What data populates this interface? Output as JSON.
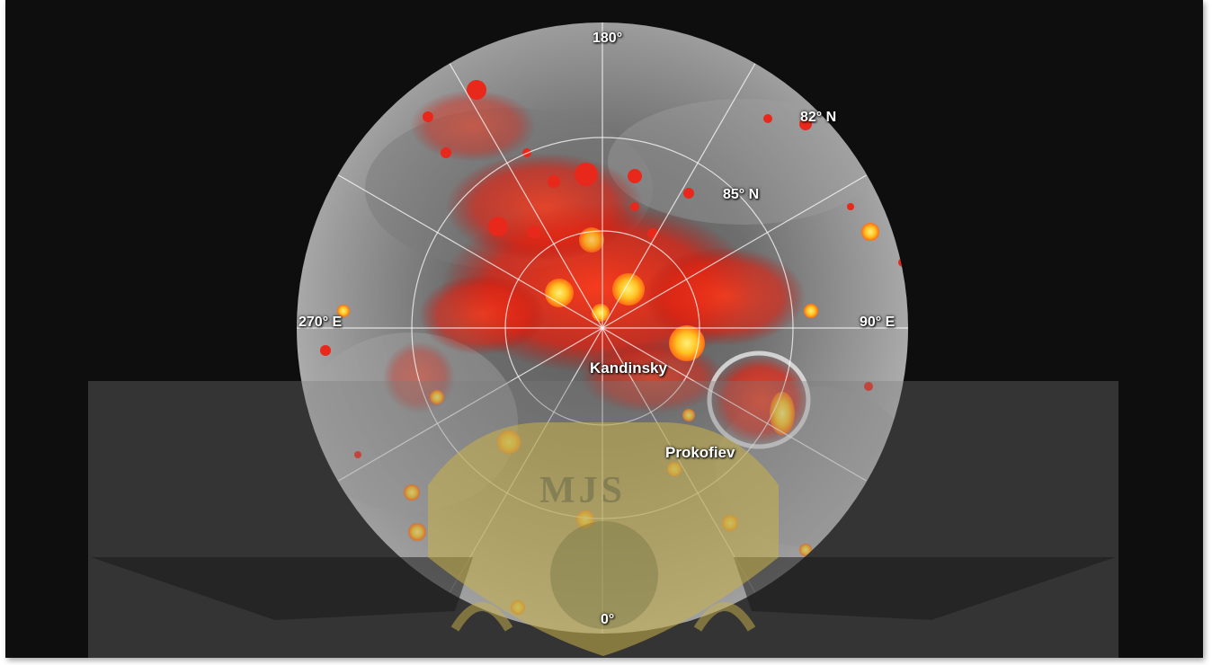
{
  "map": {
    "longitude_labels": {
      "top": "180°",
      "bottom": "0°",
      "left": "270° E",
      "right": "90° E"
    },
    "latitude_labels": {
      "outer": "82° N",
      "inner": "85° N"
    },
    "features": {
      "kandinsky": "Kandinsky",
      "prokofiev": "Prokofiev"
    },
    "watermark_text": "MJS",
    "colors": {
      "background": "#0e0e0e",
      "surface": "#8a8a8a",
      "shadow_deposit": "#e8281a",
      "bright_deposit": "#ffd23a",
      "watermark": "#c9b24a"
    }
  }
}
